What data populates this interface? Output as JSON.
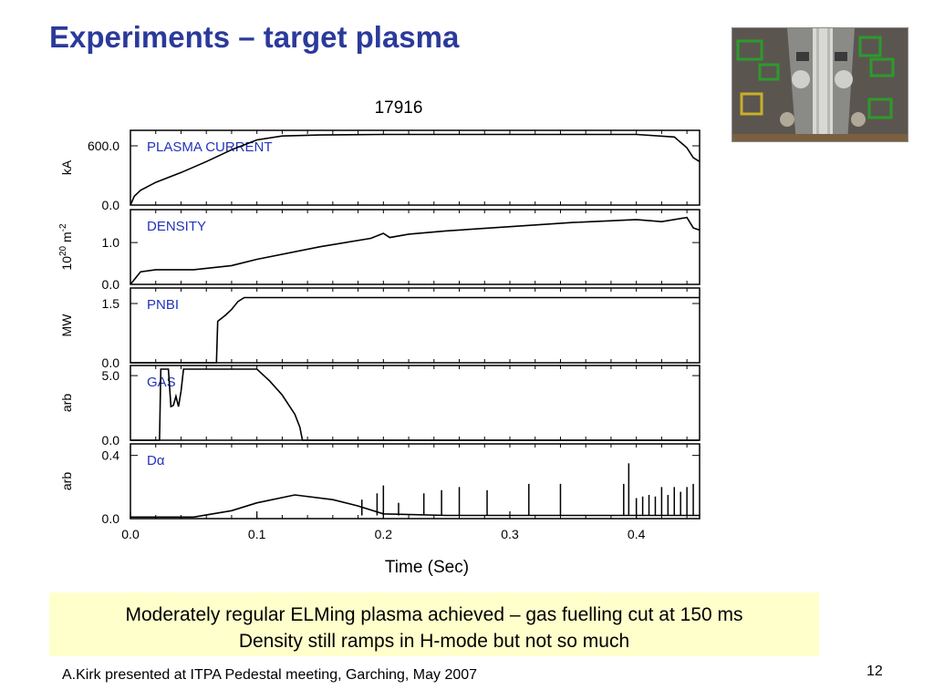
{
  "slide": {
    "title": "Experiments – target plasma",
    "caption_line1": "Moderately regular ELMing plasma achieved – gas fuelling cut at 150 ms",
    "caption_line2": "Density still ramps in H-mode but not so much",
    "footer": "A.Kirk presented at ITPA Pedestal meeting, Garching, May 2007",
    "page_number": "12"
  },
  "colors": {
    "title": "#2b3a9a",
    "panel_label": "#2233bb",
    "caption_bg": "#ffffcc",
    "trace": "#000000"
  },
  "chart_data": {
    "type": "line",
    "title": "17916",
    "xlabel": "Time (Sec)",
    "xlim": [
      0.0,
      0.45
    ],
    "x_ticks": [
      "0.0",
      "0.1",
      "0.2",
      "0.3",
      "0.4"
    ],
    "x_tick_values": [
      0.0,
      0.1,
      0.2,
      0.3,
      0.4
    ],
    "panels": [
      {
        "name": "PLASMA CURRENT",
        "ylabel": "kA",
        "ylim": [
          0,
          720
        ],
        "y_ticks": [
          "0.0",
          "600.0"
        ],
        "y_tick_values": [
          0,
          600
        ],
        "x": [
          0.0,
          0.003,
          0.008,
          0.02,
          0.04,
          0.06,
          0.08,
          0.1,
          0.12,
          0.15,
          0.2,
          0.25,
          0.3,
          0.35,
          0.4,
          0.43,
          0.44,
          0.445,
          0.45
        ],
        "y": [
          0,
          90,
          150,
          230,
          330,
          440,
          560,
          660,
          700,
          710,
          715,
          715,
          715,
          715,
          715,
          690,
          580,
          480,
          440
        ]
      },
      {
        "name": "DENSITY",
        "ylabel": "10^20 m^-2",
        "ylim": [
          0,
          1.7
        ],
        "y_ticks": [
          "0.0",
          "1.0"
        ],
        "y_tick_values": [
          0,
          1
        ],
        "x": [
          0.0,
          0.008,
          0.02,
          0.05,
          0.08,
          0.1,
          0.15,
          0.19,
          0.2,
          0.205,
          0.22,
          0.25,
          0.3,
          0.35,
          0.4,
          0.42,
          0.44,
          0.445,
          0.45
        ],
        "y": [
          0,
          0.3,
          0.35,
          0.35,
          0.45,
          0.6,
          0.9,
          1.1,
          1.22,
          1.12,
          1.2,
          1.28,
          1.38,
          1.48,
          1.55,
          1.5,
          1.6,
          1.35,
          1.3
        ]
      },
      {
        "name": "PNBI",
        "ylabel": "MW",
        "ylim": [
          0,
          1.8
        ],
        "y_ticks": [
          "0.0",
          "1.5"
        ],
        "y_tick_values": [
          0,
          1.5
        ],
        "x": [
          0.0,
          0.068,
          0.069,
          0.075,
          0.08,
          0.085,
          0.09,
          0.1,
          0.2,
          0.3,
          0.4,
          0.45
        ],
        "y": [
          0,
          0,
          1.05,
          1.2,
          1.35,
          1.55,
          1.65,
          1.65,
          1.65,
          1.65,
          1.65,
          1.65
        ]
      },
      {
        "name": "GAS",
        "ylabel": "arb",
        "ylim": [
          0,
          5.5
        ],
        "y_ticks": [
          "0.0",
          "5.0"
        ],
        "y_tick_values": [
          0,
          5
        ],
        "x": [
          0.0,
          0.023,
          0.024,
          0.03,
          0.032,
          0.034,
          0.036,
          0.038,
          0.04,
          0.042,
          0.045,
          0.1,
          0.11,
          0.12,
          0.13,
          0.134,
          0.136,
          0.45
        ],
        "y": [
          0,
          0,
          5.5,
          5.5,
          2.6,
          2.7,
          3.4,
          2.6,
          3.8,
          5.5,
          5.5,
          5.5,
          4.6,
          3.5,
          2.0,
          1.0,
          0,
          0
        ]
      },
      {
        "name": "Dα",
        "ylabel": "arb",
        "ylim": [
          0,
          0.45
        ],
        "y_ticks": [
          "0.0",
          "0.4"
        ],
        "y_tick_values": [
          0,
          0.4
        ],
        "x": [
          0.0,
          0.05,
          0.08,
          0.1,
          0.13,
          0.16,
          0.18,
          0.2,
          0.25,
          0.3,
          0.35,
          0.4,
          0.45
        ],
        "y": [
          0.01,
          0.01,
          0.05,
          0.1,
          0.15,
          0.12,
          0.08,
          0.03,
          0.02,
          0.02,
          0.02,
          0.02,
          0.02
        ],
        "spikes_x": [
          0.183,
          0.195,
          0.2,
          0.212,
          0.232,
          0.246,
          0.26,
          0.282,
          0.315,
          0.34,
          0.39,
          0.394,
          0.4,
          0.405,
          0.41,
          0.415,
          0.42,
          0.425,
          0.43,
          0.435,
          0.44,
          0.445
        ],
        "spikes_y": [
          0.12,
          0.16,
          0.21,
          0.1,
          0.16,
          0.18,
          0.2,
          0.18,
          0.22,
          0.22,
          0.22,
          0.35,
          0.13,
          0.14,
          0.15,
          0.14,
          0.2,
          0.15,
          0.2,
          0.17,
          0.2,
          0.22
        ]
      }
    ]
  },
  "photo": {
    "icon": "tokamak-vessel-interior-photo"
  }
}
